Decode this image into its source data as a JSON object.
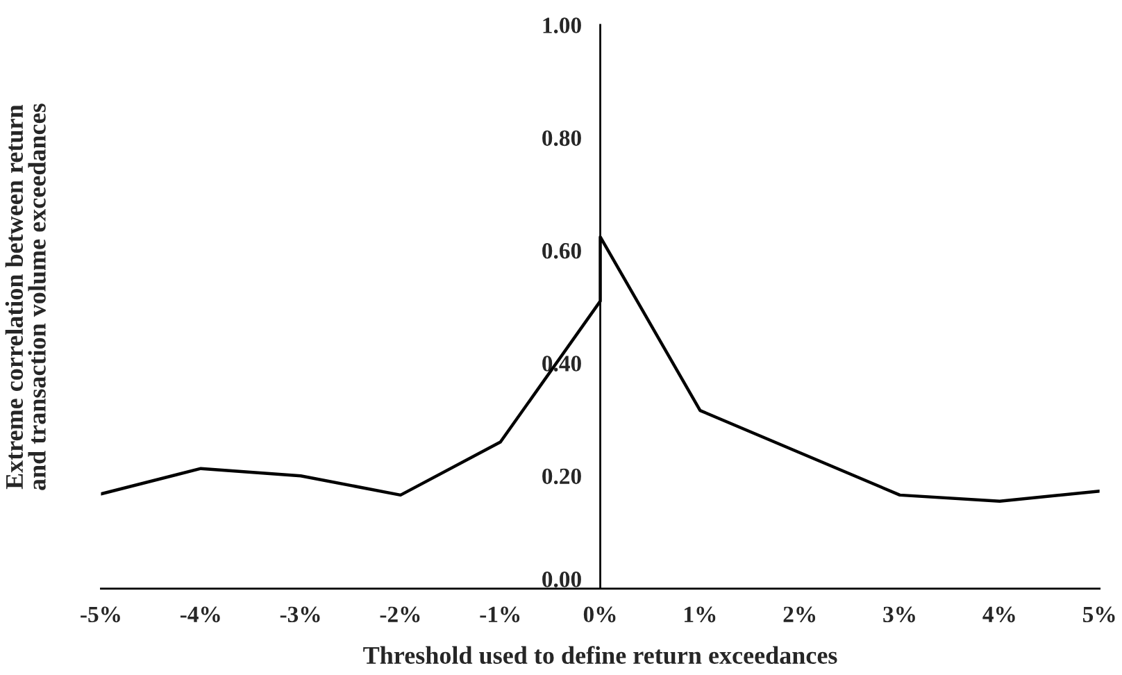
{
  "chart_data": {
    "type": "line",
    "xlabel": "Threshold used to define return exceedances",
    "ylabel": "Extreme correlation between return\nand transaction volume exceedances",
    "series": [
      {
        "color": "#000000",
        "x": [
          -5,
          -4,
          -3,
          -2,
          -1,
          0,
          0,
          1,
          2,
          3,
          4,
          5
        ],
        "values": [
          0.168,
          0.213,
          0.2,
          0.166,
          0.26,
          0.51,
          0.624,
          0.316,
          0.241,
          0.166,
          0.155,
          0.173
        ]
      }
    ],
    "xlim": [
      -5,
      5
    ],
    "xticks": [
      {
        "value": -5,
        "label": "-5%"
      },
      {
        "value": -4,
        "label": "-4%"
      },
      {
        "value": -3,
        "label": "-3%"
      },
      {
        "value": -2,
        "label": "-2%"
      },
      {
        "value": -1,
        "label": "-1%"
      },
      {
        "value": 0,
        "label": "0%"
      },
      {
        "value": 1,
        "label": "1%"
      },
      {
        "value": 2,
        "label": "2%"
      },
      {
        "value": 3,
        "label": "3%"
      },
      {
        "value": 4,
        "label": "4%"
      },
      {
        "value": 5,
        "label": "5%"
      }
    ],
    "ylim": [
      0,
      1
    ],
    "yticks": [
      {
        "value": 0,
        "label": "0.00"
      },
      {
        "value": 0.2,
        "label": "0.20"
      },
      {
        "value": 0.4,
        "label": "0.40"
      },
      {
        "value": 0.6,
        "label": "0.60"
      },
      {
        "value": 0.8,
        "label": "0.80"
      },
      {
        "value": 1,
        "label": "1.00"
      }
    ],
    "grid": false,
    "legend": false,
    "marker": "none",
    "line_style": "solid"
  }
}
